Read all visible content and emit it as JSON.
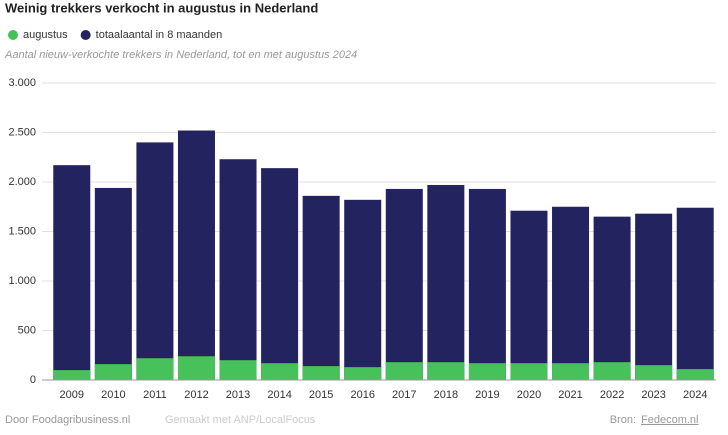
{
  "chart_data": {
    "type": "bar",
    "title": "Weinig trekkers verkocht in augustus in Nederland",
    "subtitle": "Aantal nieuw-verkochte trekkers in Nederland, tot en met augustus 2024",
    "categories": [
      "2009",
      "2010",
      "2011",
      "2012",
      "2013",
      "2014",
      "2015",
      "2016",
      "2017",
      "2018",
      "2019",
      "2020",
      "2021",
      "2022",
      "2023",
      "2024"
    ],
    "series": [
      {
        "name": "totaalaantal in 8 maanden",
        "color": "#23235f",
        "values": [
          2170,
          1940,
          2400,
          2520,
          2230,
          2140,
          1860,
          1820,
          1930,
          1970,
          1930,
          1710,
          1750,
          1650,
          1680,
          1740
        ]
      },
      {
        "name": "augustus",
        "color": "#47c15a",
        "values": [
          100,
          160,
          220,
          240,
          200,
          170,
          140,
          130,
          180,
          180,
          170,
          170,
          170,
          180,
          150,
          110
        ]
      }
    ],
    "legend_order": [
      1,
      0
    ],
    "ylim": [
      0,
      3000
    ],
    "yticks": [
      0,
      500,
      {
        "value": 1000,
        "label": "1.000"
      },
      {
        "value": 1500,
        "label": "1.500"
      },
      {
        "value": 2000,
        "label": "2.000"
      },
      {
        "value": 2500,
        "label": "2.500"
      },
      {
        "value": 3000,
        "label": "3.000"
      }
    ],
    "grid": true
  },
  "footer": {
    "credit": "Door Foodagribusiness.nl",
    "made_with": "Gemaakt met ANP/LocalFocus",
    "source_label": "Bron:",
    "source": "Fedecom.nl"
  }
}
